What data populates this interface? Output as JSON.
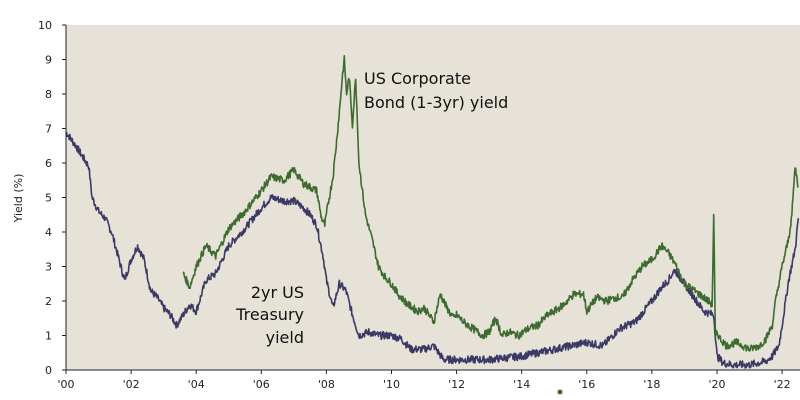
{
  "chart_data": {
    "type": "line",
    "ylabel": "Yield (%)",
    "xlabel": "",
    "xlim": [
      2000,
      2022.55
    ],
    "ylim": [
      0,
      10
    ],
    "y_ticks": [
      "0",
      "1",
      "2",
      "3",
      "4",
      "5",
      "6",
      "7",
      "8",
      "9",
      "10"
    ],
    "x_ticks": [
      {
        "value": 2000,
        "label": "'00"
      },
      {
        "value": 2002,
        "label": "'02"
      },
      {
        "value": 2004,
        "label": "'04"
      },
      {
        "value": 2006,
        "label": "'06"
      },
      {
        "value": 2008,
        "label": "'08"
      },
      {
        "value": 2010,
        "label": "'10"
      },
      {
        "value": 2012,
        "label": "'12"
      },
      {
        "value": 2014,
        "label": "'14"
      },
      {
        "value": 2016,
        "label": "'16"
      },
      {
        "value": 2018,
        "label": "'18"
      },
      {
        "value": 2020,
        "label": "'20"
      },
      {
        "value": 2022,
        "label": "'22"
      }
    ],
    "series": [
      {
        "name": "US Corporate Bond (1-3yr) yield",
        "color": "#3e6b2f",
        "x": [
          2003.6,
          2003.8,
          2004.0,
          2004.3,
          2004.6,
          2005.0,
          2005.5,
          2006.0,
          2006.3,
          2006.7,
          2007.0,
          2007.3,
          2007.5,
          2007.7,
          2007.85,
          2007.95,
          2008.05,
          2008.2,
          2008.3,
          2008.4,
          2008.5,
          2008.55,
          2008.62,
          2008.7,
          2008.8,
          2008.9,
          2009.0,
          2009.2,
          2009.4,
          2009.6,
          2009.8,
          2010.0,
          2010.2,
          2010.5,
          2010.8,
          2011.0,
          2011.3,
          2011.5,
          2011.7,
          2011.9,
          2012.0,
          2012.2,
          2012.5,
          2012.8,
          2013.0,
          2013.2,
          2013.4,
          2013.6,
          2013.9,
          2014.2,
          2014.5,
          2014.8,
          2015.0,
          2015.3,
          2015.6,
          2015.9,
          2016.0,
          2016.3,
          2016.6,
          2016.9,
          2017.1,
          2017.4,
          2017.7,
          2018.0,
          2018.3,
          2018.5,
          2018.7,
          2019.0,
          2019.3,
          2019.6,
          2019.85,
          2019.9,
          2019.95,
          2020.0,
          2020.1,
          2020.3,
          2020.6,
          2021.0,
          2021.3,
          2021.5,
          2021.7,
          2021.8,
          2022.0,
          2022.2,
          2022.3,
          2022.4,
          2022.5
        ],
        "y": [
          2.8,
          2.4,
          3.0,
          3.6,
          3.3,
          4.1,
          4.6,
          5.2,
          5.6,
          5.5,
          5.8,
          5.4,
          5.3,
          5.2,
          4.4,
          4.2,
          4.8,
          5.6,
          6.5,
          7.5,
          8.6,
          9.0,
          8.0,
          8.5,
          7.1,
          8.5,
          6.0,
          4.5,
          3.8,
          3.0,
          2.7,
          2.5,
          2.2,
          1.9,
          1.7,
          1.8,
          1.4,
          2.2,
          1.8,
          1.5,
          1.6,
          1.4,
          1.2,
          1.0,
          1.1,
          1.5,
          1.0,
          1.1,
          1.0,
          1.2,
          1.3,
          1.6,
          1.7,
          1.9,
          2.2,
          2.2,
          1.7,
          2.1,
          2.0,
          2.1,
          2.1,
          2.6,
          3.0,
          3.2,
          3.6,
          3.4,
          3.1,
          2.5,
          2.3,
          2.1,
          1.9,
          4.5,
          0.9,
          1.1,
          0.9,
          0.7,
          0.8,
          0.6,
          0.7,
          0.9,
          1.3,
          2.0,
          3.0,
          3.8,
          4.5,
          5.9,
          5.3
        ]
      },
      {
        "name": "2yr US Treasury yield",
        "color": "#3a3a64",
        "x": [
          2000.0,
          2000.3,
          2000.5,
          2000.7,
          2000.8,
          2001.0,
          2001.2,
          2001.4,
          2001.6,
          2001.8,
          2002.0,
          2002.2,
          2002.4,
          2002.6,
          2002.8,
          2003.0,
          2003.2,
          2003.4,
          2003.6,
          2003.8,
          2004.0,
          2004.3,
          2004.6,
          2005.0,
          2005.5,
          2006.0,
          2006.3,
          2006.7,
          2007.0,
          2007.3,
          2007.5,
          2007.7,
          2007.9,
          2008.0,
          2008.2,
          2008.4,
          2008.6,
          2008.8,
          2009.0,
          2009.3,
          2009.6,
          2010.0,
          2010.3,
          2010.6,
          2011.0,
          2011.3,
          2011.6,
          2012.0,
          2012.5,
          2013.0,
          2013.5,
          2014.0,
          2014.5,
          2015.0,
          2015.5,
          2016.0,
          2016.5,
          2017.0,
          2017.5,
          2018.0,
          2018.3,
          2018.5,
          2018.7,
          2019.0,
          2019.3,
          2019.6,
          2019.9,
          2020.0,
          2020.2,
          2020.5,
          2021.0,
          2021.5,
          2021.7,
          2021.9,
          2022.0,
          2022.2,
          2022.4,
          2022.5
        ],
        "y": [
          6.9,
          6.5,
          6.2,
          5.9,
          5.0,
          4.6,
          4.4,
          4.0,
          3.3,
          2.6,
          3.2,
          3.6,
          3.2,
          2.3,
          2.1,
          1.8,
          1.6,
          1.3,
          1.6,
          1.9,
          1.7,
          2.6,
          2.8,
          3.6,
          4.1,
          4.7,
          5.0,
          4.9,
          4.9,
          4.7,
          4.5,
          4.2,
          3.3,
          2.6,
          1.8,
          2.5,
          2.3,
          1.6,
          1.0,
          1.1,
          1.0,
          1.0,
          0.9,
          0.6,
          0.6,
          0.7,
          0.3,
          0.3,
          0.3,
          0.3,
          0.35,
          0.4,
          0.5,
          0.6,
          0.7,
          0.8,
          0.7,
          1.2,
          1.4,
          2.0,
          2.4,
          2.6,
          2.9,
          2.5,
          2.1,
          1.7,
          1.6,
          0.4,
          0.2,
          0.15,
          0.15,
          0.25,
          0.4,
          0.7,
          1.3,
          2.6,
          3.5,
          4.4
        ]
      }
    ],
    "annotations": {
      "corporate_line1": "US Corporate",
      "corporate_line2": "Bond (1-3yr) yield",
      "treasury_line1": "2yr US",
      "treasury_line2": "Treasury",
      "treasury_line3": "yield"
    }
  }
}
